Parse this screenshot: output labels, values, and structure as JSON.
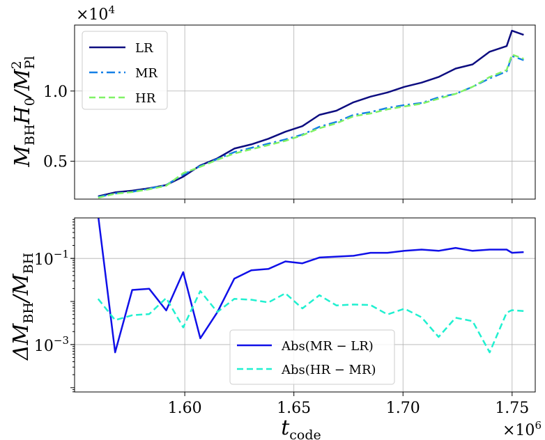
{
  "chart_data": [
    {
      "type": "line",
      "ylabel": "M_BH H_0 / M_Pl^2",
      "y_multiplier": "×10^4",
      "ylim": [
        2300,
        14700
      ],
      "y_ticks": [
        {
          "value": 5000,
          "label": "0.5"
        },
        {
          "value": 10000,
          "label": "1.0"
        }
      ],
      "legend": {
        "placement": "upper-left",
        "entries": [
          "LR",
          "MR",
          "HR"
        ]
      },
      "series": [
        {
          "name": "LR",
          "color": "#0d0d80",
          "style": "solid",
          "values": [
            2500,
            2780,
            2900,
            3080,
            3300,
            3900,
            4700,
            5200,
            5900,
            6200,
            6600,
            7100,
            7500,
            8300,
            8600,
            9200,
            9600,
            9900,
            10300,
            10600,
            11000,
            11600,
            11900,
            12800,
            13200,
            14000,
            14300
          ]
        },
        {
          "name": "MR",
          "color": "#1580e6",
          "style": "dashdot",
          "values": [
            2450,
            2700,
            2820,
            3050,
            3300,
            4050,
            4650,
            5150,
            5650,
            5950,
            6250,
            6550,
            6900,
            7450,
            7800,
            8300,
            8500,
            8800,
            9000,
            9150,
            9550,
            9800,
            10300,
            10900,
            11400,
            12200,
            12500
          ]
        },
        {
          "name": "HR",
          "color": "#80f266",
          "style": "dashed",
          "values": [
            2400,
            2680,
            2800,
            3000,
            3250,
            4150,
            4600,
            5100,
            5550,
            5850,
            6150,
            6450,
            6850,
            7350,
            7700,
            8200,
            8400,
            8700,
            8900,
            9100,
            9450,
            9800,
            10300,
            11000,
            11500,
            12300,
            12600
          ]
        }
      ]
    },
    {
      "type": "line",
      "ylabel": "ΔM_BH / M_BH",
      "xlabel": "t_code",
      "x_multiplier": "×10^6",
      "yscale": "log",
      "ylim": [
        7.94e-05,
        0.871
      ],
      "y_ticks": [
        {
          "value": 0.1,
          "label": "10^-1"
        },
        {
          "value": 0.001,
          "label": "10^-3"
        }
      ],
      "x_ticks": [
        {
          "value": 1.6,
          "label": "1.60"
        },
        {
          "value": 1.65,
          "label": "1.65"
        },
        {
          "value": 1.7,
          "label": "1.70"
        },
        {
          "value": 1.75,
          "label": "1.75"
        }
      ],
      "legend": {
        "placement": "lower-center",
        "entries": [
          "Abs(MR − LR)",
          "Abs(HR − MR)"
        ]
      },
      "series": [
        {
          "name": "Abs(MR − LR)",
          "color": "#1010e8",
          "style": "solid",
          "values": [
            1.0,
            0.00066,
            0.0185,
            0.0197,
            0.0062,
            0.048,
            0.0014,
            0.0056,
            0.034,
            0.053,
            0.057,
            0.085,
            0.077,
            0.105,
            0.11,
            0.115,
            0.135,
            0.135,
            0.15,
            0.16,
            0.15,
            0.175,
            0.15,
            0.16,
            0.16,
            0.14,
            0.135
          ]
        },
        {
          "name": "Abs(HR − MR)",
          "color": "#20f0d0",
          "style": "dashed",
          "values": [
            0.0115,
            0.0037,
            0.0048,
            0.0051,
            0.012,
            0.0025,
            0.0175,
            0.0057,
            0.0115,
            0.011,
            0.0095,
            0.0155,
            0.0069,
            0.014,
            0.0081,
            0.0085,
            0.0083,
            0.005,
            0.0068,
            0.0043,
            0.0015,
            0.0042,
            0.0035,
            0.00066,
            0.0055,
            0.006,
            0.0063
          ]
        }
      ]
    }
  ],
  "x_values": [
    1.5603,
    1.5681,
    1.5759,
    1.5837,
    1.5915,
    1.5993,
    1.6071,
    1.6149,
    1.6227,
    1.6305,
    1.6383,
    1.6461,
    1.6539,
    1.6617,
    1.6695,
    1.6773,
    1.6851,
    1.6929,
    1.7007,
    1.7085,
    1.7163,
    1.7241,
    1.7319,
    1.7397,
    1.7475,
    1.7553,
    1.7499
  ],
  "labels": {
    "top_multiplier_base": "×10",
    "top_multiplier_exp": "4",
    "bottom_multiplier_base": "×10",
    "bottom_multiplier_exp": "6",
    "top_ylabel_main": "M",
    "top_ylabel_sub1": "BH",
    "top_ylabel_h": "H",
    "top_ylabel_h_sub": "0",
    "top_ylabel_slash": "/M",
    "top_ylabel_sub2": "Pl",
    "top_ylabel_sup": "2",
    "bottom_ylabel_delta": "ΔM",
    "bottom_ylabel_sub1": "BH",
    "bottom_ylabel_slash": "/M",
    "bottom_ylabel_sub2": "BH",
    "xlabel_main": "t",
    "xlabel_sub": "code",
    "ytick_exp_base": "10",
    "ytick_exp_neg1": "−1",
    "ytick_exp_neg3": "−3"
  }
}
